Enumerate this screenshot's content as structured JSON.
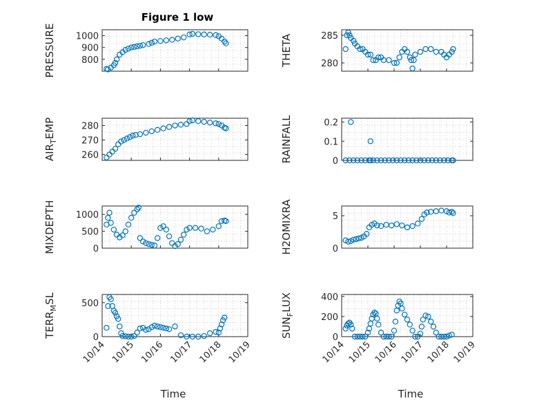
{
  "figure": {
    "title": "Figure 1 low"
  },
  "chart_data": [
    {
      "type": "scatter",
      "ylabel": "PRESSURE",
      "xlim": [
        0,
        5
      ],
      "ylim": [
        700,
        1050
      ],
      "yticks": [
        800,
        900,
        1000
      ],
      "grid": true,
      "marker": "circle",
      "color": "#0072BD",
      "x": [
        0.15,
        0.2,
        0.3,
        0.4,
        0.45,
        0.5,
        0.6,
        0.7,
        0.8,
        0.9,
        1.0,
        1.1,
        1.2,
        1.3,
        1.4,
        1.6,
        1.7,
        1.8,
        2.0,
        2.2,
        2.4,
        2.6,
        2.8,
        3.0,
        3.1,
        3.3,
        3.5,
        3.7,
        3.9,
        4.0,
        4.1,
        4.2,
        4.25
      ],
      "y": [
        720,
        715,
        730,
        750,
        770,
        800,
        840,
        860,
        880,
        890,
        900,
        905,
        910,
        915,
        920,
        930,
        940,
        950,
        955,
        960,
        965,
        975,
        985,
        1010,
        1015,
        1012,
        1010,
        1008,
        1005,
        995,
        975,
        950,
        935
      ]
    },
    {
      "type": "scatter",
      "ylabel": "THETA",
      "xlim": [
        0,
        5
      ],
      "ylim": [
        278.5,
        286
      ],
      "yticks": [
        280,
        285
      ],
      "grid": true,
      "marker": "circle",
      "color": "#0072BD",
      "x": [
        0.15,
        0.2,
        0.25,
        0.3,
        0.35,
        0.45,
        0.5,
        0.6,
        0.7,
        0.8,
        0.9,
        1.0,
        1.1,
        1.2,
        1.3,
        1.4,
        1.5,
        1.6,
        1.8,
        2.0,
        2.1,
        2.2,
        2.3,
        2.4,
        2.5,
        2.6,
        2.65,
        2.7,
        2.75,
        2.8,
        3.0,
        3.2,
        3.4,
        3.6,
        3.8,
        3.9,
        4.0,
        4.1,
        4.2,
        4.25
      ],
      "y": [
        282.5,
        285,
        285.5,
        285,
        284.5,
        284,
        283.5,
        283,
        282.5,
        282.5,
        282,
        281.5,
        281.5,
        280.5,
        280.5,
        281,
        281,
        280.5,
        280.5,
        280,
        280,
        281,
        282,
        282.5,
        282,
        281,
        280.5,
        279,
        280.5,
        281.5,
        282,
        282.5,
        282.5,
        282,
        282,
        281.5,
        281,
        281.5,
        282,
        282.5
      ]
    },
    {
      "type": "scatter",
      "ylabel": "AIR_TEMP",
      "xlim": [
        0,
        5
      ],
      "ylim": [
        256,
        285
      ],
      "yticks": [
        260,
        270,
        280
      ],
      "grid": true,
      "marker": "circle",
      "color": "#0072BD",
      "x": [
        0.15,
        0.25,
        0.35,
        0.45,
        0.55,
        0.65,
        0.75,
        0.85,
        0.95,
        1.05,
        1.15,
        1.3,
        1.5,
        1.7,
        1.9,
        2.1,
        2.3,
        2.5,
        2.7,
        2.9,
        3.0,
        3.1,
        3.3,
        3.5,
        3.7,
        3.9,
        4.0,
        4.1,
        4.2,
        4.25
      ],
      "y": [
        258,
        260,
        262,
        264,
        267,
        269,
        270,
        271,
        272,
        273,
        273.5,
        274,
        275,
        276,
        277,
        278,
        279,
        280,
        280.5,
        281,
        283,
        283.5,
        283,
        282.5,
        282,
        281.5,
        281,
        280,
        278.5,
        278
      ]
    },
    {
      "type": "scatter",
      "ylabel": "RAINFALL",
      "xlim": [
        0,
        5
      ],
      "ylim": [
        0,
        0.22
      ],
      "yticks": [
        0,
        0.1,
        0.2
      ],
      "grid": true,
      "marker": "circle",
      "color": "#0072BD",
      "x": [
        0.15,
        0.3,
        0.45,
        0.6,
        0.75,
        0.9,
        1.05,
        1.1,
        1.2,
        1.35,
        1.5,
        1.65,
        1.8,
        1.95,
        2.1,
        2.25,
        2.4,
        2.55,
        2.7,
        2.85,
        3.0,
        3.15,
        3.3,
        3.45,
        3.6,
        3.75,
        3.9,
        4.05,
        4.2,
        4.25,
        0.35,
        1.1
      ],
      "y": [
        0,
        0,
        0,
        0,
        0,
        0,
        0,
        0,
        0,
        0,
        0,
        0,
        0,
        0,
        0,
        0,
        0,
        0,
        0,
        0,
        0,
        0,
        0,
        0,
        0,
        0,
        0,
        0,
        0,
        0,
        0.2,
        0.1
      ]
    },
    {
      "type": "scatter",
      "ylabel": "MIXDEPTH",
      "xlim": [
        0,
        5
      ],
      "ylim": [
        0,
        1250
      ],
      "yticks": [
        0,
        500,
        1000
      ],
      "grid": true,
      "marker": "circle",
      "color": "#0072BD",
      "x": [
        0.15,
        0.2,
        0.25,
        0.3,
        0.4,
        0.5,
        0.6,
        0.7,
        0.8,
        0.9,
        1.0,
        1.1,
        1.2,
        1.25,
        1.3,
        1.4,
        1.5,
        1.6,
        1.7,
        1.8,
        1.9,
        2.0,
        2.1,
        2.2,
        2.3,
        2.4,
        2.5,
        2.6,
        2.7,
        2.8,
        2.9,
        3.0,
        3.2,
        3.4,
        3.6,
        3.8,
        4.0,
        4.1,
        4.2,
        4.25
      ],
      "y": [
        700,
        900,
        1050,
        750,
        550,
        400,
        320,
        380,
        500,
        700,
        900,
        1050,
        1150,
        1200,
        300,
        200,
        150,
        120,
        100,
        80,
        300,
        600,
        650,
        550,
        350,
        150,
        60,
        120,
        250,
        400,
        550,
        600,
        600,
        580,
        500,
        550,
        650,
        800,
        820,
        800
      ]
    },
    {
      "type": "scatter",
      "ylabel": "H2OMIXRA",
      "xlim": [
        0,
        5
      ],
      "ylim": [
        0,
        6.5
      ],
      "yticks": [
        0,
        5
      ],
      "grid": true,
      "marker": "circle",
      "color": "#0072BD",
      "x": [
        0.15,
        0.25,
        0.35,
        0.45,
        0.55,
        0.65,
        0.75,
        0.85,
        0.95,
        1.05,
        1.15,
        1.25,
        1.35,
        1.5,
        1.7,
        1.9,
        2.1,
        2.3,
        2.5,
        2.7,
        2.9,
        3.05,
        3.15,
        3.25,
        3.4,
        3.6,
        3.8,
        4.0,
        4.1,
        4.2,
        4.25
      ],
      "y": [
        1.2,
        1.0,
        1.1,
        1.3,
        1.4,
        1.5,
        1.6,
        1.8,
        2.2,
        3.2,
        3.6,
        3.8,
        3.5,
        3.4,
        3.6,
        3.5,
        3.7,
        3.5,
        3.2,
        3.4,
        3.8,
        4.5,
        5.2,
        5.5,
        5.6,
        5.7,
        5.8,
        5.7,
        5.5,
        5.6,
        5.4
      ]
    },
    {
      "type": "scatter",
      "ylabel": "TERR_MSL",
      "xlim": [
        0,
        5
      ],
      "ylim": [
        0,
        620
      ],
      "yticks": [
        0,
        500
      ],
      "grid": true,
      "marker": "circle",
      "color": "#0072BD",
      "x": [
        0.15,
        0.2,
        0.25,
        0.3,
        0.35,
        0.4,
        0.45,
        0.5,
        0.55,
        0.6,
        0.65,
        0.7,
        0.8,
        0.9,
        1.0,
        1.1,
        1.2,
        1.3,
        1.4,
        1.5,
        1.6,
        1.7,
        1.8,
        1.9,
        2.0,
        2.1,
        2.2,
        2.3,
        2.5,
        2.7,
        2.9,
        3.1,
        3.3,
        3.5,
        3.7,
        3.9,
        4.0,
        4.05,
        4.1,
        4.15,
        4.2
      ],
      "y": [
        130,
        450,
        580,
        550,
        450,
        380,
        350,
        300,
        260,
        150,
        50,
        10,
        5,
        0,
        0,
        10,
        60,
        120,
        130,
        100,
        110,
        140,
        160,
        150,
        140,
        130,
        120,
        110,
        150,
        20,
        0,
        0,
        0,
        10,
        50,
        70,
        60,
        120,
        180,
        240,
        280
      ]
    },
    {
      "type": "scatter",
      "ylabel": "SUN_FLUX",
      "xlim": [
        0,
        5
      ],
      "ylim": [
        0,
        420
      ],
      "yticks": [
        0,
        200,
        400
      ],
      "grid": true,
      "marker": "circle",
      "color": "#0072BD",
      "x": [
        0.15,
        0.2,
        0.25,
        0.3,
        0.35,
        0.4,
        0.5,
        0.6,
        0.7,
        0.8,
        0.9,
        1.0,
        1.05,
        1.1,
        1.15,
        1.2,
        1.25,
        1.3,
        1.35,
        1.4,
        1.5,
        1.6,
        1.7,
        1.8,
        1.9,
        2.0,
        2.05,
        2.1,
        2.15,
        2.2,
        2.25,
        2.3,
        2.4,
        2.5,
        2.6,
        2.7,
        2.8,
        2.9,
        3.0,
        3.05,
        3.1,
        3.2,
        3.3,
        3.4,
        3.5,
        3.6,
        3.7,
        3.8,
        3.9,
        4.0,
        4.1,
        4.2
      ],
      "y": [
        80,
        110,
        130,
        140,
        120,
        80,
        0,
        0,
        0,
        0,
        0,
        40,
        80,
        130,
        180,
        220,
        240,
        230,
        180,
        120,
        40,
        0,
        0,
        0,
        0,
        60,
        150,
        260,
        310,
        350,
        330,
        280,
        220,
        170,
        120,
        60,
        0,
        0,
        30,
        100,
        170,
        210,
        200,
        150,
        100,
        40,
        0,
        0,
        0,
        0,
        10,
        20
      ]
    }
  ],
  "axes": {
    "x_ticks": [
      "10/14",
      "10/15",
      "10/16",
      "10/17",
      "10/18",
      "10/19"
    ],
    "xlabel_left": "Time",
    "xlabel_right": "Time"
  }
}
